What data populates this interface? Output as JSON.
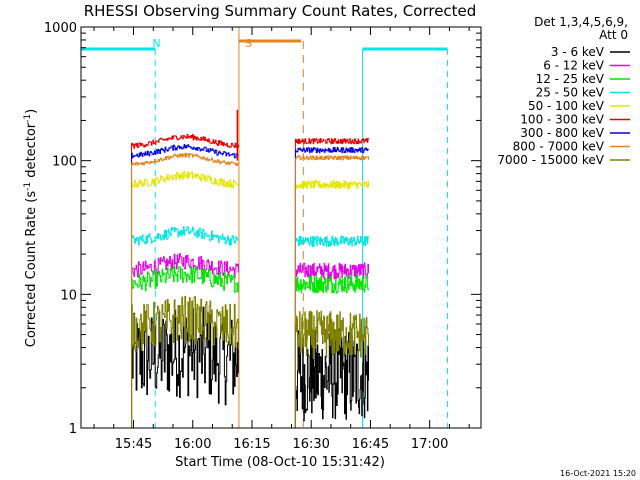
{
  "chart_data": {
    "type": "line",
    "title": "RHESSI Observing Summary Count Rates, Corrected",
    "xlabel": "Start Time (08-Oct-10 15:31:42)",
    "ylabel_main": "Corrected Count Rate (s",
    "ylabel_sup1": "-1",
    "ylabel_mid": " detector",
    "ylabel_sup2": "-1",
    "ylabel_end": ")",
    "y_scale": "log",
    "ylim": [
      1,
      1000
    ],
    "xlim": [
      "15:31:42",
      "17:13:00"
    ],
    "x_ticks": [
      "15:45",
      "16:00",
      "16:15",
      "16:30",
      "16:45",
      "17:00"
    ],
    "x_tick_minutes": [
      45,
      60,
      75,
      90,
      105,
      120
    ],
    "x_range_minutes": [
      31.7,
      133.0
    ],
    "y_ticks": [
      "1",
      "10",
      "100",
      "1000"
    ],
    "y_tick_values": [
      1,
      10,
      100,
      1000
    ],
    "legend_placement": "top-right",
    "legend_header": [
      "Det 1,3,4,5,6,9,",
      "Att 0"
    ],
    "timestamp": "16-Oct-2021 15:20",
    "annotations": [
      {
        "text": "N",
        "color": "#00e6e6",
        "x_minutes": 48.0
      },
      {
        "text": "S",
        "color": "#e6831a",
        "x_minutes": 71.5
      }
    ],
    "night_intervals": [
      {
        "label": "N",
        "from_minutes": 31.7,
        "to_minutes": 50.5
      },
      {
        "label": "N",
        "from_minutes": 103.0,
        "to_minutes": 124.5
      }
    ],
    "saa_interval": {
      "label": "S",
      "from_minutes": 71.7,
      "to_minutes": 88.0
    },
    "data_gaps": [
      {
        "from_minutes": 71.8,
        "to_minutes": 86.0
      }
    ],
    "data_segments": [
      {
        "from_minutes": 44.5,
        "to_minutes": 71.5
      },
      {
        "from_minutes": 86.0,
        "to_minutes": 104.5
      }
    ],
    "series": [
      {
        "name": "3 - 6 keV",
        "color": "#000000",
        "level_seg1": 3.2,
        "level_seg2": 2.5,
        "noise": 0.35
      },
      {
        "name": "6 - 12 keV",
        "color": "#e600e6",
        "level_seg1": 15,
        "level_seg2": 15,
        "noise": 0.06
      },
      {
        "name": "12 - 25 keV",
        "color": "#00e600",
        "level_seg1": 12,
        "level_seg2": 12,
        "noise": 0.07
      },
      {
        "name": "25 - 50 keV",
        "color": "#00e6e6",
        "level_seg1": 25,
        "level_seg2": 25,
        "noise": 0.04
      },
      {
        "name": "50 - 100 keV",
        "color": "#e6e600",
        "level_seg1": 66,
        "level_seg2": 66,
        "noise": 0.03
      },
      {
        "name": "100 - 300 keV",
        "color": "#e60000",
        "level_seg1": 128,
        "level_seg2": 140,
        "noise": 0.02
      },
      {
        "name": "300 - 800 keV",
        "color": "#0000e6",
        "level_seg1": 108,
        "level_seg2": 120,
        "noise": 0.02
      },
      {
        "name": "800 - 7000 keV",
        "color": "#e6831a",
        "level_seg1": 93,
        "level_seg2": 105,
        "noise": 0.015
      },
      {
        "name": "7000 - 15000 keV",
        "color": "#808000",
        "level_seg1": 5.5,
        "level_seg2": 5.0,
        "noise": 0.18
      }
    ]
  }
}
